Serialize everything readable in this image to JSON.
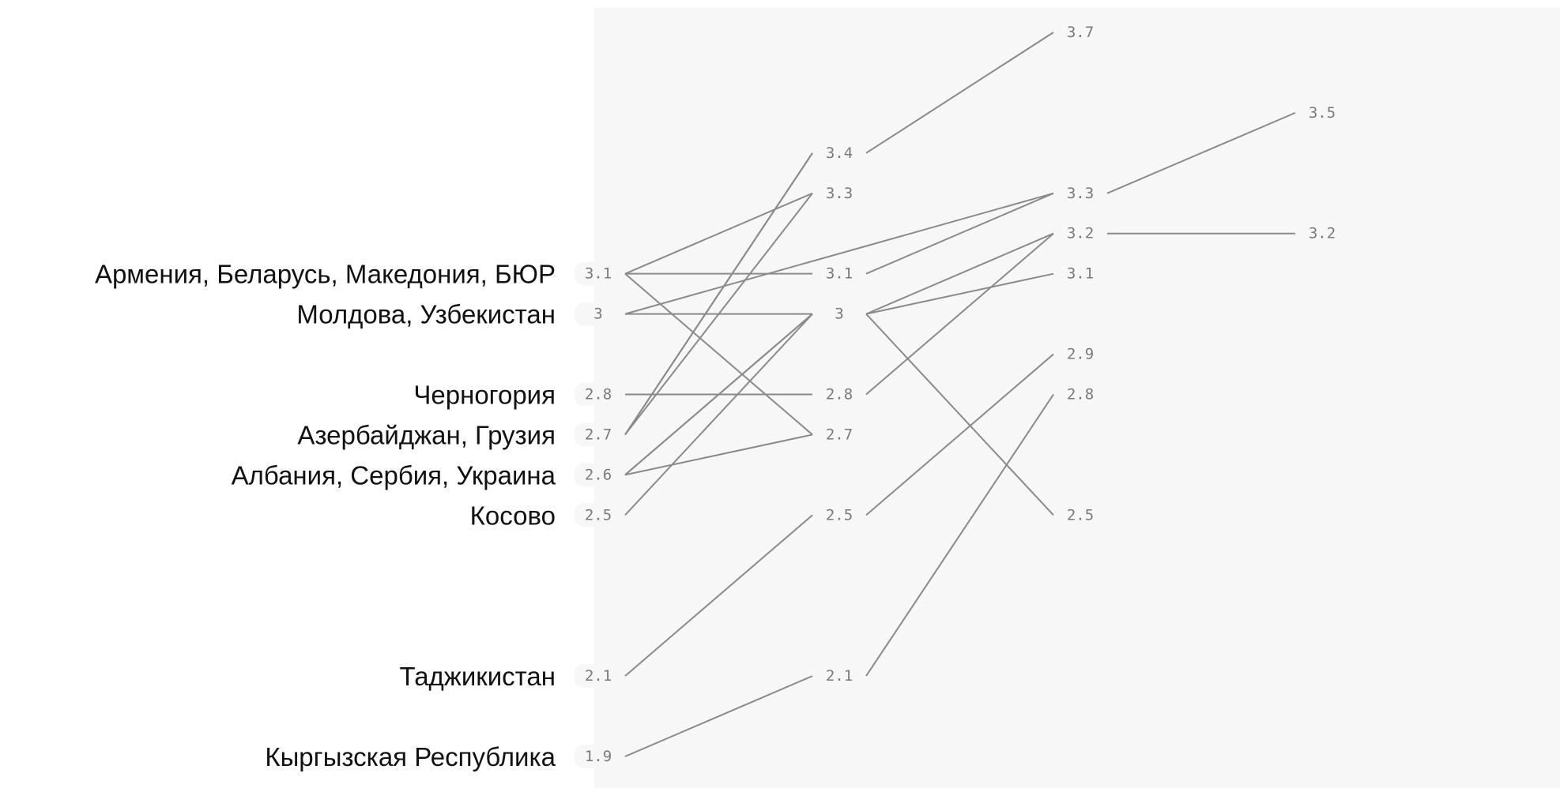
{
  "chart_data": {
    "type": "line",
    "title": "",
    "x": [
      1,
      2,
      3,
      4
    ],
    "category_labels": [
      {
        "text": "Армения, Беларусь, Македония, БЮР",
        "y": 3.1
      },
      {
        "text": "Молдова, Узбекистан",
        "y": 3.0
      },
      {
        "text": "Черногория",
        "y": 2.8
      },
      {
        "text": "Азербайджан, Грузия",
        "y": 2.7
      },
      {
        "text": "Албания, Сербия, Украина",
        "y": 2.6
      },
      {
        "text": "Косово",
        "y": 2.5
      },
      {
        "text": "Таджикистан",
        "y": 2.1
      },
      {
        "text": "Кыргызская Республика",
        "y": 1.9
      }
    ],
    "value_labels": [
      {
        "x": 1,
        "y": 3.1,
        "text": "3.1"
      },
      {
        "x": 1,
        "y": 3.0,
        "text": "3"
      },
      {
        "x": 1,
        "y": 2.8,
        "text": "2.8"
      },
      {
        "x": 1,
        "y": 2.7,
        "text": "2.7"
      },
      {
        "x": 1,
        "y": 2.6,
        "text": "2.6"
      },
      {
        "x": 1,
        "y": 2.5,
        "text": "2.5"
      },
      {
        "x": 1,
        "y": 2.1,
        "text": "2.1"
      },
      {
        "x": 1,
        "y": 1.9,
        "text": "1.9"
      },
      {
        "x": 2,
        "y": 3.4,
        "text": "3.4"
      },
      {
        "x": 2,
        "y": 3.3,
        "text": "3.3"
      },
      {
        "x": 2,
        "y": 3.1,
        "text": "3.1"
      },
      {
        "x": 2,
        "y": 3.0,
        "text": "3"
      },
      {
        "x": 2,
        "y": 2.8,
        "text": "2.8"
      },
      {
        "x": 2,
        "y": 2.7,
        "text": "2.7"
      },
      {
        "x": 2,
        "y": 2.5,
        "text": "2.5"
      },
      {
        "x": 2,
        "y": 2.1,
        "text": "2.1"
      },
      {
        "x": 3,
        "y": 3.7,
        "text": "3.7"
      },
      {
        "x": 3,
        "y": 3.3,
        "text": "3.3"
      },
      {
        "x": 3,
        "y": 3.2,
        "text": "3.2"
      },
      {
        "x": 3,
        "y": 3.1,
        "text": "3.1"
      },
      {
        "x": 3,
        "y": 2.9,
        "text": "2.9"
      },
      {
        "x": 3,
        "y": 2.8,
        "text": "2.8"
      },
      {
        "x": 3,
        "y": 2.5,
        "text": "2.5"
      },
      {
        "x": 4,
        "y": 3.5,
        "text": "3.5"
      },
      {
        "x": 4,
        "y": 3.2,
        "text": "3.2"
      }
    ],
    "segments": [
      {
        "x1": 1,
        "y1": 3.1,
        "x2": 2,
        "y2": 3.3
      },
      {
        "x1": 1,
        "y1": 3.1,
        "x2": 2,
        "y2": 3.1
      },
      {
        "x1": 1,
        "y1": 3.1,
        "x2": 2,
        "y2": 2.7
      },
      {
        "x1": 1,
        "y1": 3.0,
        "x2": 2,
        "y2": 3.0
      },
      {
        "x1": 1,
        "y1": 3.0,
        "x2": 3,
        "y2": 3.3
      },
      {
        "x1": 1,
        "y1": 2.8,
        "x2": 2,
        "y2": 2.8
      },
      {
        "x1": 1,
        "y1": 2.7,
        "x2": 2,
        "y2": 3.4
      },
      {
        "x1": 1,
        "y1": 2.7,
        "x2": 2,
        "y2": 3.4
      },
      {
        "x1": 1,
        "y1": 2.7,
        "x2": 2,
        "y2": 3.3
      },
      {
        "x1": 1,
        "y1": 2.6,
        "x2": 2,
        "y2": 3.0
      },
      {
        "x1": 1,
        "y1": 2.6,
        "x2": 2,
        "y2": 3.0
      },
      {
        "x1": 1,
        "y1": 2.6,
        "x2": 2,
        "y2": 2.7
      },
      {
        "x1": 1,
        "y1": 2.5,
        "x2": 2,
        "y2": 3.0
      },
      {
        "x1": 1,
        "y1": 2.1,
        "x2": 2,
        "y2": 2.5
      },
      {
        "x1": 1,
        "y1": 1.9,
        "x2": 2,
        "y2": 2.1
      },
      {
        "x1": 2,
        "y1": 3.4,
        "x2": 3,
        "y2": 3.7
      },
      {
        "x1": 2,
        "y1": 3.1,
        "x2": 3,
        "y2": 3.3
      },
      {
        "x1": 2,
        "y1": 3.0,
        "x2": 3,
        "y2": 3.2
      },
      {
        "x1": 2,
        "y1": 3.0,
        "x2": 3,
        "y2": 3.1
      },
      {
        "x1": 2,
        "y1": 3.0,
        "x2": 3,
        "y2": 2.5
      },
      {
        "x1": 2,
        "y1": 2.8,
        "x2": 3,
        "y2": 3.2
      },
      {
        "x1": 2,
        "y1": 2.5,
        "x2": 3,
        "y2": 2.9
      },
      {
        "x1": 2,
        "y1": 2.1,
        "x2": 3,
        "y2": 2.8
      },
      {
        "x1": 3,
        "y1": 3.3,
        "x2": 4,
        "y2": 3.5
      },
      {
        "x1": 3,
        "y1": 3.2,
        "x2": 4,
        "y2": 3.2
      }
    ],
    "ylim": [
      1.9,
      3.7
    ],
    "grid": false,
    "legend": "none"
  }
}
